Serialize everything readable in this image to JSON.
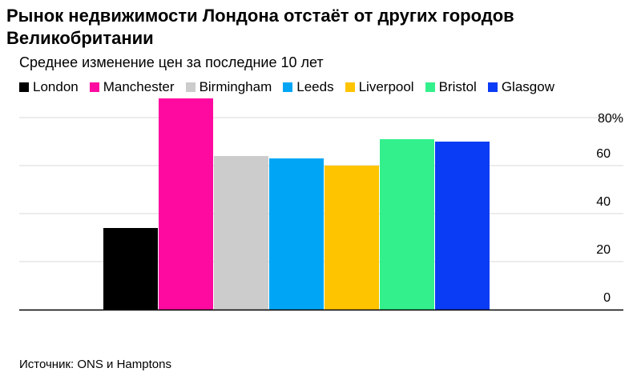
{
  "title": "Рынок недвижимости Лондона отстаёт от других городов Великобритании",
  "subtitle": "Среднее изменение цен за последние 10 лет",
  "source": "Источник: ONS и Hamptons",
  "chart_data": {
    "type": "bar",
    "categories": [
      "London",
      "Manchester",
      "Birmingham",
      "Leeds",
      "Liverpool",
      "Bristol",
      "Glasgow"
    ],
    "values": [
      34,
      88,
      64,
      63,
      60,
      71,
      70
    ],
    "colors": [
      "#000000",
      "#ff0aa0",
      "#cccccc",
      "#00a6f5",
      "#ffc400",
      "#33f08c",
      "#0a3cf5"
    ],
    "ylim": [
      0,
      88
    ],
    "yticks": [
      0,
      20,
      40,
      60,
      80
    ],
    "ytick_labels": [
      "0",
      "20",
      "40",
      "60",
      "80%"
    ],
    "grid": true,
    "y_axis_side": "right",
    "legend_position": "top"
  }
}
